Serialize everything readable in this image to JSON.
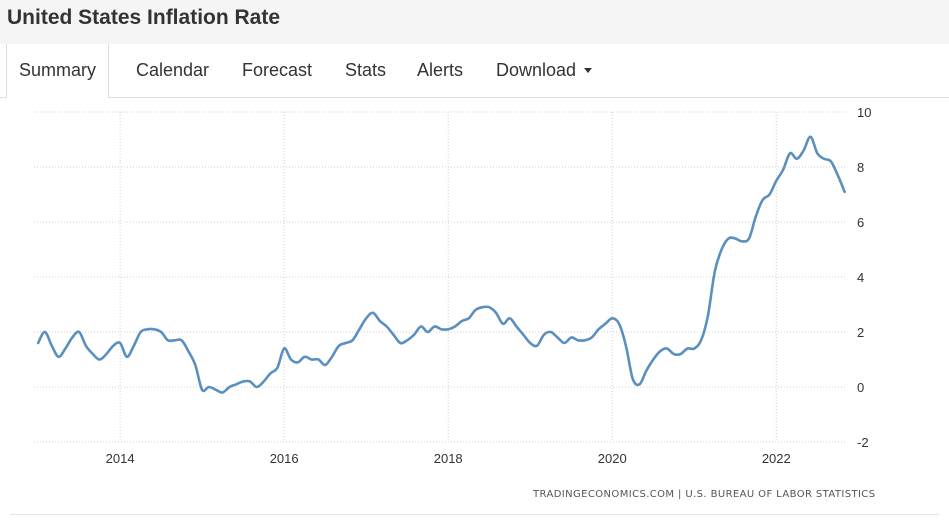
{
  "header": {
    "title": "United States Inflation Rate"
  },
  "tabs": [
    {
      "label": "Summary",
      "active": true
    },
    {
      "label": "Calendar",
      "active": false
    },
    {
      "label": "Forecast",
      "active": false
    },
    {
      "label": "Stats",
      "active": false
    },
    {
      "label": "Alerts",
      "active": false
    },
    {
      "label": "Download",
      "active": false
    }
  ],
  "colors": {
    "line": "#5b8fbd",
    "grid": "#cfcfcf",
    "text": "#333333"
  },
  "chart_data": {
    "type": "line",
    "title": "United States Inflation Rate",
    "xlabel": "",
    "ylabel": "",
    "xlim": [
      2012.95,
      2022.85
    ],
    "ylim": [
      -2,
      10
    ],
    "x_ticks": [
      2014,
      2016,
      2018,
      2020,
      2022
    ],
    "y_ticks": [
      10,
      8,
      6,
      4,
      2,
      0,
      -2
    ],
    "x_tick_labels": [
      "2014",
      "2016",
      "2018",
      "2020",
      "2022"
    ],
    "y_tick_labels": [
      "10",
      "8",
      "6",
      "4",
      "2",
      "0",
      "-2"
    ],
    "grid": true,
    "source": "TRADINGECONOMICS.COM  |  U.S. BUREAU OF LABOR STATISTICS",
    "series": [
      {
        "name": "United States Inflation Rate",
        "x": [
          2013.0,
          2013.083,
          2013.167,
          2013.25,
          2013.333,
          2013.417,
          2013.5,
          2013.583,
          2013.667,
          2013.75,
          2013.833,
          2013.917,
          2014.0,
          2014.083,
          2014.167,
          2014.25,
          2014.333,
          2014.417,
          2014.5,
          2014.583,
          2014.667,
          2014.75,
          2014.833,
          2014.917,
          2015.0,
          2015.083,
          2015.167,
          2015.25,
          2015.333,
          2015.417,
          2015.5,
          2015.583,
          2015.667,
          2015.75,
          2015.833,
          2015.917,
          2016.0,
          2016.083,
          2016.167,
          2016.25,
          2016.333,
          2016.417,
          2016.5,
          2016.583,
          2016.667,
          2016.75,
          2016.833,
          2016.917,
          2017.0,
          2017.083,
          2017.167,
          2017.25,
          2017.333,
          2017.417,
          2017.5,
          2017.583,
          2017.667,
          2017.75,
          2017.833,
          2017.917,
          2018.0,
          2018.083,
          2018.167,
          2018.25,
          2018.333,
          2018.417,
          2018.5,
          2018.583,
          2018.667,
          2018.75,
          2018.833,
          2018.917,
          2019.0,
          2019.083,
          2019.167,
          2019.25,
          2019.333,
          2019.417,
          2019.5,
          2019.583,
          2019.667,
          2019.75,
          2019.833,
          2019.917,
          2020.0,
          2020.083,
          2020.167,
          2020.25,
          2020.333,
          2020.417,
          2020.5,
          2020.583,
          2020.667,
          2020.75,
          2020.833,
          2020.917,
          2021.0,
          2021.083,
          2021.167,
          2021.25,
          2021.333,
          2021.417,
          2021.5,
          2021.583,
          2021.667,
          2021.75,
          2021.833,
          2021.917,
          2022.0,
          2022.083,
          2022.167,
          2022.25,
          2022.333,
          2022.417,
          2022.5,
          2022.583,
          2022.667,
          2022.75,
          2022.833
        ],
        "values": [
          1.6,
          2.0,
          1.5,
          1.1,
          1.4,
          1.8,
          2.0,
          1.5,
          1.2,
          1.0,
          1.2,
          1.5,
          1.6,
          1.1,
          1.5,
          2.0,
          2.1,
          2.1,
          2.0,
          1.7,
          1.7,
          1.7,
          1.3,
          0.8,
          -0.1,
          0.0,
          -0.1,
          -0.2,
          0.0,
          0.1,
          0.2,
          0.2,
          0.0,
          0.2,
          0.5,
          0.7,
          1.4,
          1.0,
          0.9,
          1.1,
          1.0,
          1.0,
          0.8,
          1.1,
          1.5,
          1.6,
          1.7,
          2.1,
          2.5,
          2.7,
          2.4,
          2.2,
          1.9,
          1.6,
          1.7,
          1.9,
          2.2,
          2.0,
          2.2,
          2.1,
          2.1,
          2.2,
          2.4,
          2.5,
          2.8,
          2.9,
          2.9,
          2.7,
          2.3,
          2.5,
          2.2,
          1.9,
          1.6,
          1.5,
          1.9,
          2.0,
          1.8,
          1.6,
          1.8,
          1.7,
          1.7,
          1.8,
          2.1,
          2.3,
          2.5,
          2.3,
          1.5,
          0.3,
          0.1,
          0.6,
          1.0,
          1.3,
          1.4,
          1.2,
          1.2,
          1.4,
          1.4,
          1.7,
          2.6,
          4.2,
          5.0,
          5.4,
          5.4,
          5.3,
          5.4,
          6.2,
          6.8,
          7.0,
          7.5,
          7.9,
          8.5,
          8.3,
          8.6,
          9.1,
          8.5,
          8.3,
          8.2,
          7.7,
          7.1
        ]
      }
    ]
  }
}
